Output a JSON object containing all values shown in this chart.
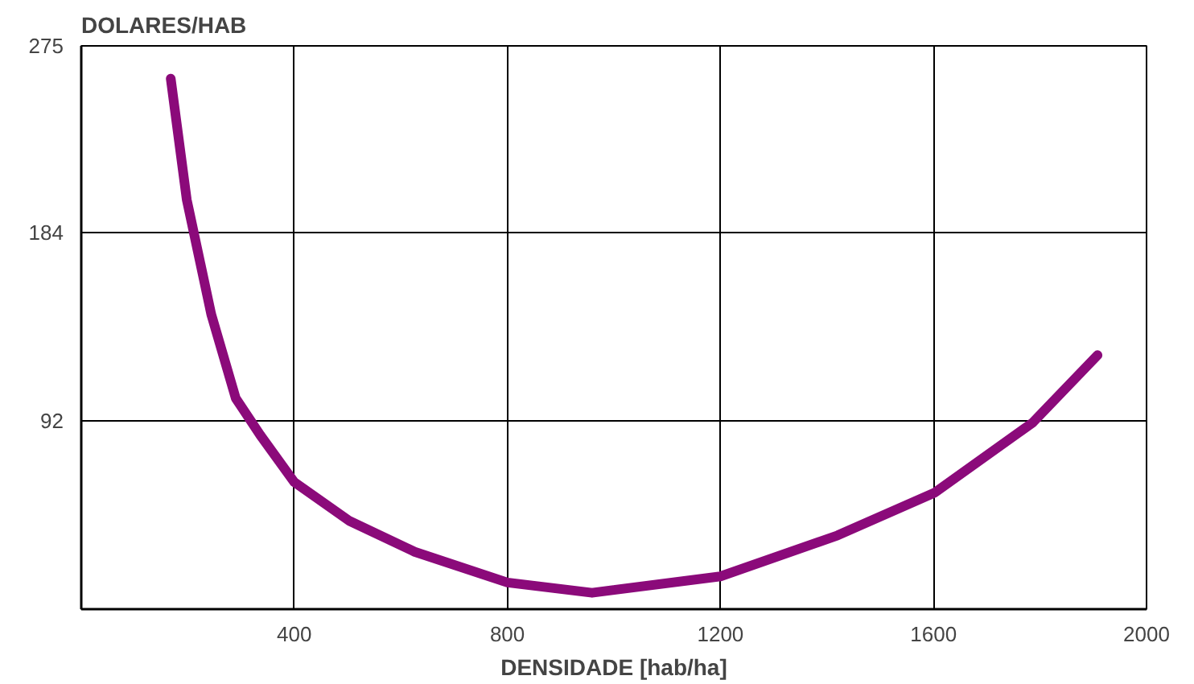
{
  "chart_data": {
    "type": "line",
    "ylabel": "DOLARES/HAB",
    "xlabel": "DENSIDADE [hab/ha]",
    "x": [
      168,
      198,
      244,
      290,
      336,
      400,
      504,
      626,
      800,
      959,
      1200,
      1420,
      1603,
      1786,
      1908
    ],
    "series": [
      {
        "color": "#8b0a7a",
        "values": [
          259,
          200,
          144,
          103,
          85,
          62,
          43,
          28,
          13,
          8,
          16,
          36,
          57,
          91,
          124
        ]
      }
    ],
    "xlim": [
      0,
      2000
    ],
    "ylim": [
      0,
      275
    ],
    "xticks": [
      400,
      800,
      1200,
      1600,
      2000
    ],
    "yticks": [
      92,
      184,
      275
    ],
    "grid": true,
    "line_style": "solid"
  }
}
